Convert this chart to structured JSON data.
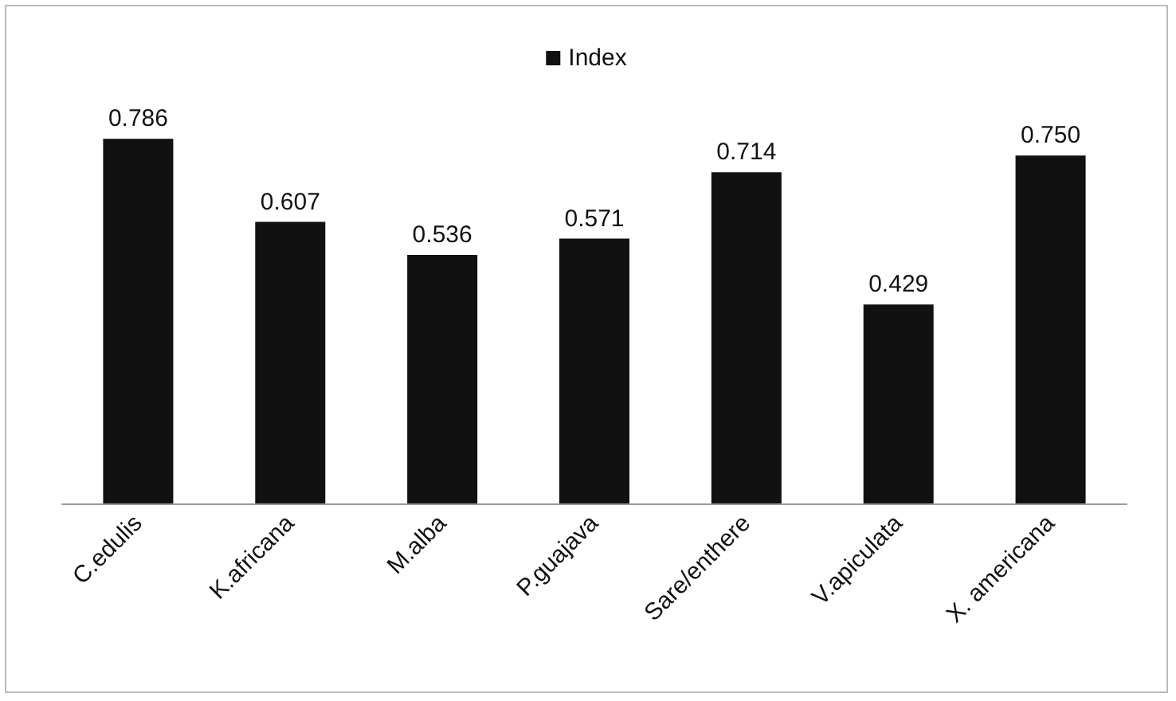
{
  "chart_data": {
    "type": "bar",
    "categories": [
      "C.edulis",
      "K.africana",
      "M.alba",
      "P.guajava",
      "Sare/enthere",
      "V.apiculata",
      "X. americana"
    ],
    "series": [
      {
        "name": "Index",
        "color": "#111111",
        "values": [
          0.786,
          0.607,
          0.536,
          0.571,
          0.714,
          0.429,
          0.75
        ],
        "value_labels": [
          "0.786",
          "0.607",
          "0.536",
          "0.571",
          "0.714",
          "0.429",
          "0.750"
        ]
      }
    ],
    "legend": "top"
  }
}
